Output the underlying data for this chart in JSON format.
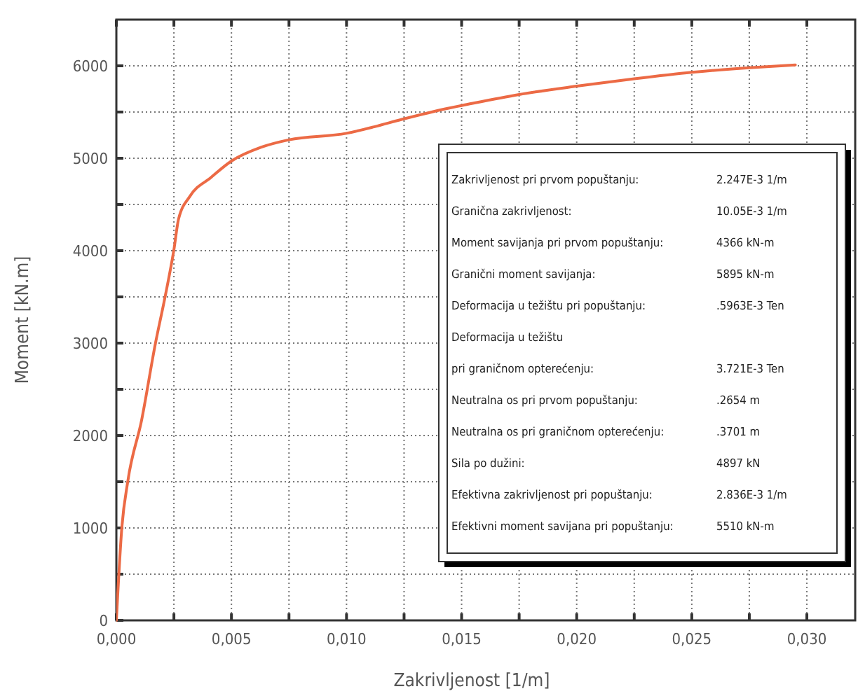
{
  "chart_data": {
    "type": "line",
    "xlabel": "Zakrivljenost [1/m]",
    "ylabel": "Moment [kN.m]",
    "xlim": [
      0,
      0.0321
    ],
    "ylim": [
      0,
      6500
    ],
    "xticks": [
      {
        "value": 0,
        "label": "0,000"
      },
      {
        "value": 0.0025,
        "label": null
      },
      {
        "value": 0.005,
        "label": "0,005"
      },
      {
        "value": 0.0075,
        "label": null
      },
      {
        "value": 0.01,
        "label": "0,010"
      },
      {
        "value": 0.0125,
        "label": null
      },
      {
        "value": 0.015,
        "label": "0,015"
      },
      {
        "value": 0.0175,
        "label": null
      },
      {
        "value": 0.02,
        "label": "0,020"
      },
      {
        "value": 0.0225,
        "label": null
      },
      {
        "value": 0.025,
        "label": "0,025"
      },
      {
        "value": 0.0275,
        "label": null
      },
      {
        "value": 0.03,
        "label": "0,030"
      }
    ],
    "yticks": [
      0,
      {
        "value": 500,
        "label": null
      },
      1000,
      {
        "value": 1500,
        "label": null
      },
      2000,
      {
        "value": 2500,
        "label": null
      },
      3000,
      {
        "value": 3500,
        "label": null
      },
      4000,
      {
        "value": 4500,
        "label": null
      },
      5000,
      {
        "value": 5500,
        "label": null
      },
      6000
    ],
    "grid": true,
    "marker": "none",
    "line_style": "solid",
    "series": [
      {
        "color": "#ec6a45",
        "x": [
          0,
          0.00024,
          0.0005,
          0.0011,
          0.0017,
          0.0021,
          0.0025,
          0.0027,
          0.0032,
          0.0041,
          0.005,
          0.0063,
          0.0075,
          0.01,
          0.0112,
          0.0124,
          0.0144,
          0.015,
          0.0175,
          0.02,
          0.0225,
          0.025,
          0.0275,
          0.0295
        ],
        "values": [
          0,
          1010,
          1510,
          2170,
          3000,
          3480,
          4010,
          4340,
          4590,
          4790,
          4970,
          5120,
          5200,
          5270,
          5340,
          5420,
          5540,
          5570,
          5690,
          5780,
          5860,
          5930,
          5980,
          6010
        ]
      }
    ],
    "annotations": [
      "Zakrivljenost pri prvom popuštanju:",
      "2.247E-3 1/m",
      "Granična zakrivljenost:",
      "10.05E-3 1/m",
      "Moment savijanja pri prvom popuštanju:",
      "4366 kN-m",
      "Granični moment savijanja:",
      "5895 kN-m",
      "Deformacija u težištu pri popuštanju:",
      ".5963E-3 Ten",
      "Deformacija u težištu\npri graničnom opterećenju:",
      "3.721E-3 Ten",
      "Neutralna os pri prvom popuštanju:",
      ".2654 m",
      "Neutralna os pri graničnom opterećenju:",
      ".3701 m",
      "Sila po dužini:",
      "4897 kN",
      "Efektivna zakrivljenost pri popuštanju:",
      "2.836E-3 1/m",
      "Efektivni moment savijana pri popuštanju:",
      "5510 kN-m"
    ]
  }
}
